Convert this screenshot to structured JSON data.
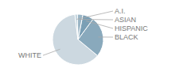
{
  "chart_data": {
    "type": "pie",
    "categories": [
      "WHITE",
      "BLACK",
      "HISPANIC",
      "ASIAN",
      "A.I."
    ],
    "values": [
      62,
      26,
      7,
      3.5,
      1.5
    ],
    "colors": [
      "#ccd8e0",
      "#89a9bc",
      "#7a9fb5",
      "#9ab5c5",
      "#b8cdd8"
    ]
  }
}
